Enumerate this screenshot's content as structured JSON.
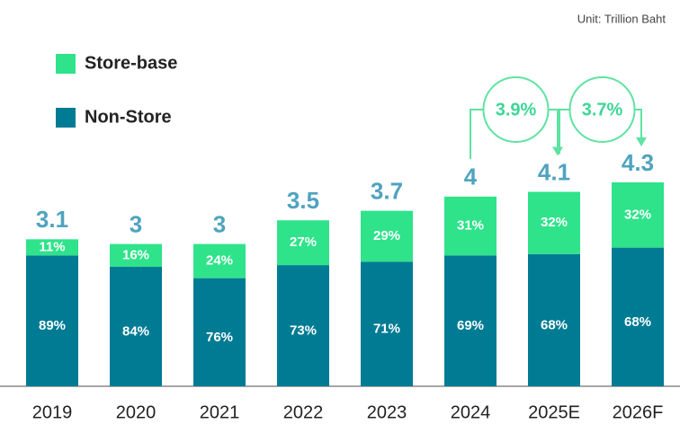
{
  "chart_data": {
    "type": "bar",
    "unit": "Unit: Trillion Baht",
    "categories": [
      "2019",
      "2020",
      "2021",
      "2022",
      "2023",
      "2024",
      "2025E",
      "2026F"
    ],
    "totals": [
      3.1,
      3.0,
      3.0,
      3.5,
      3.7,
      4.0,
      4.1,
      4.3
    ],
    "totals_color": "#4fa3bf",
    "series": [
      {
        "name": "Non-Store",
        "color": "#007b94",
        "values": [
          89,
          84,
          76,
          73,
          71,
          69,
          68,
          68
        ],
        "value_labels": [
          "89%",
          "84%",
          "76%",
          "73%",
          "71%",
          "69%",
          "68%",
          "68%"
        ]
      },
      {
        "name": "Store-base",
        "color": "#2fe38b",
        "values": [
          11,
          16,
          24,
          27,
          29,
          31,
          32,
          32
        ],
        "value_labels": [
          "11%",
          "16%",
          "24%",
          "27%",
          "29%",
          "31%",
          "32%",
          "32%"
        ]
      }
    ],
    "annotations": [
      "3.9%",
      "3.7%"
    ],
    "annotation_color": "#5ee3a2"
  }
}
